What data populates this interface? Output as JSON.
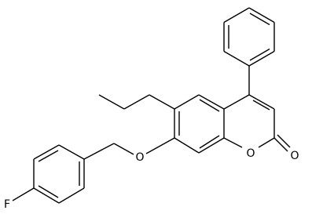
{
  "atoms": [
    "O",
    "O",
    "O",
    "F"
  ]
}
